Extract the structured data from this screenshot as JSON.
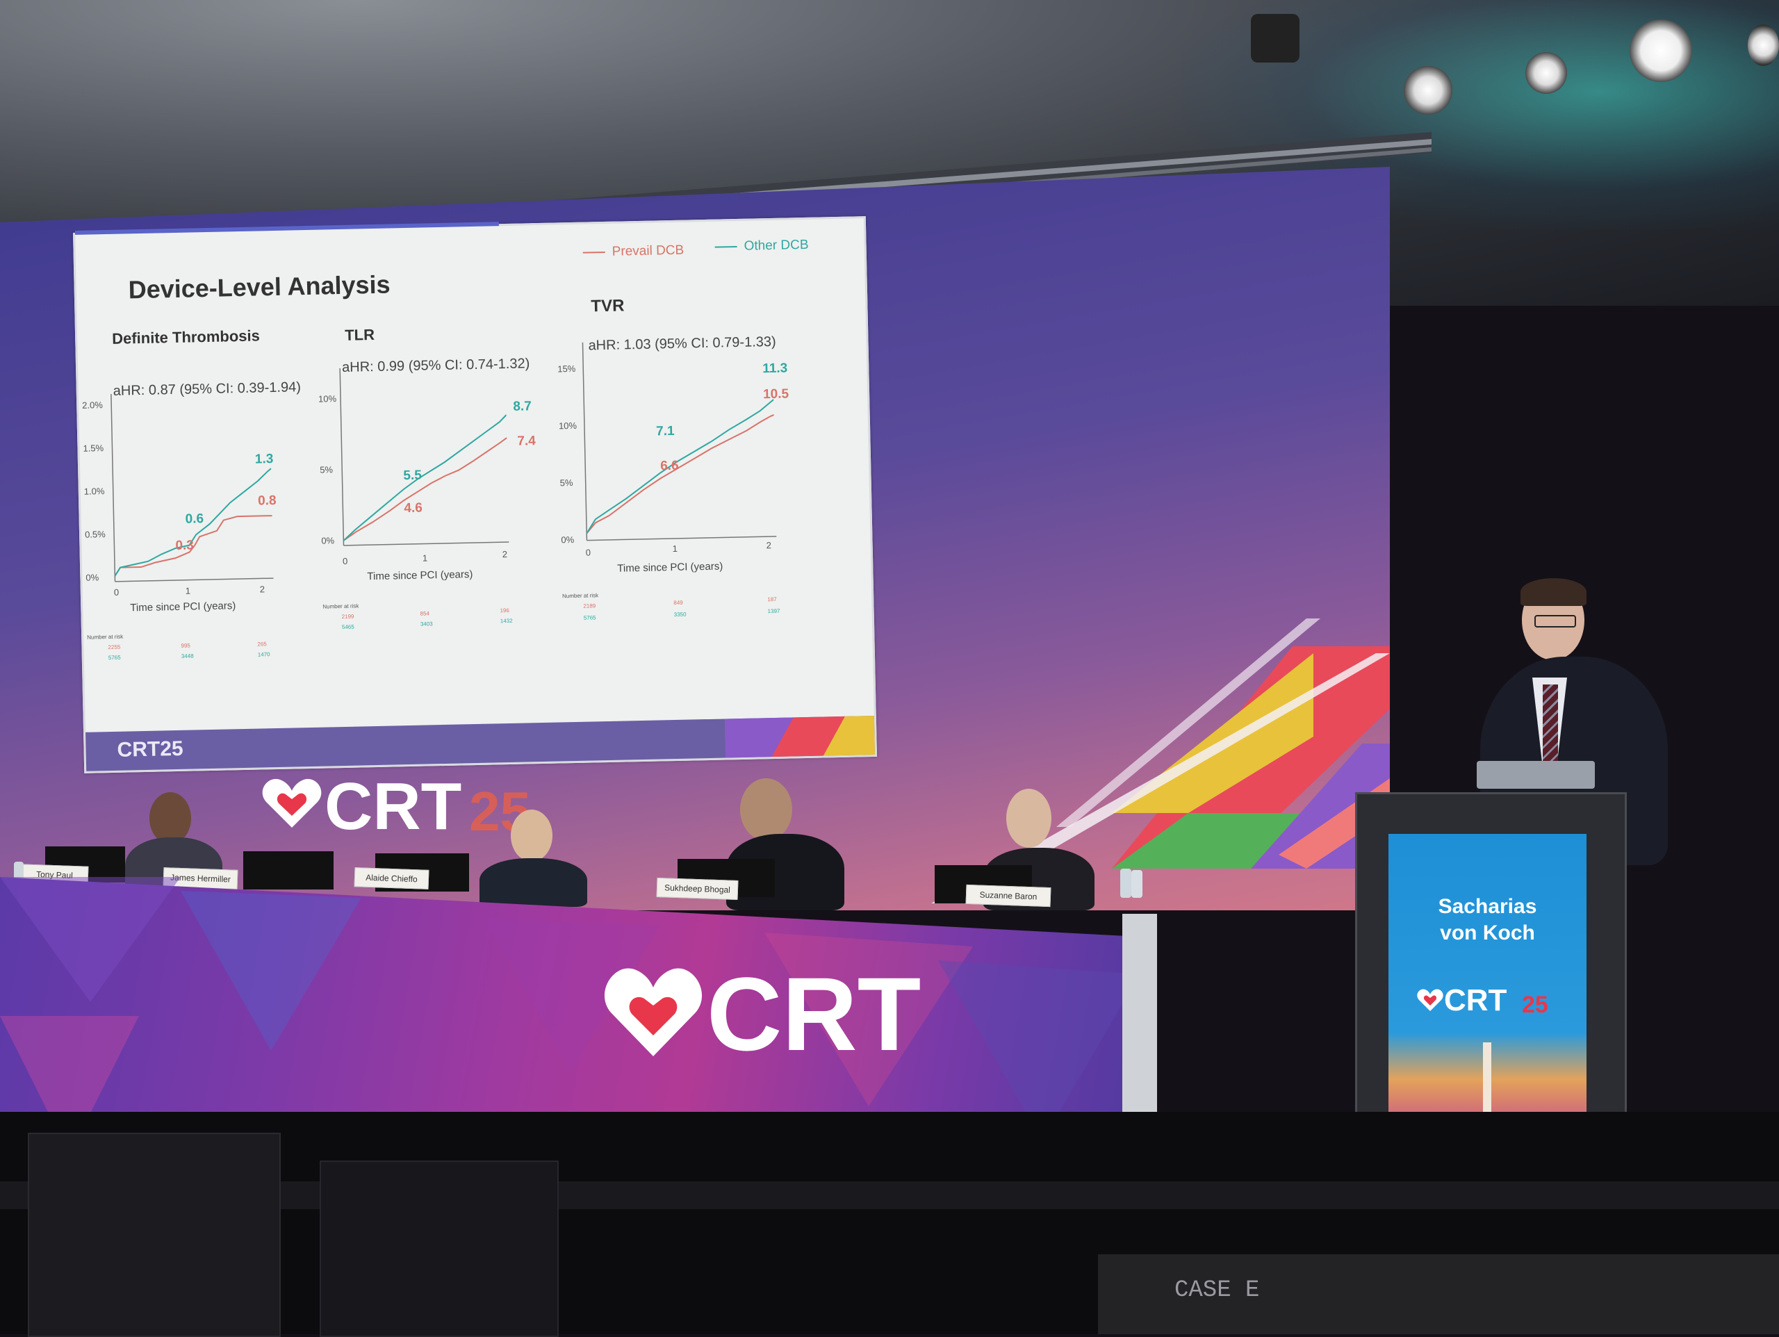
{
  "slide": {
    "title": "Device-Level Analysis",
    "legend": [
      {
        "label": "Prevail DCB",
        "color": "#d9736a"
      },
      {
        "label": "Other DCB",
        "color": "#2fa7a2"
      }
    ],
    "panels": [
      {
        "title": "Definite Thrombosis",
        "ahr": "aHR: 0.87 (95% CI: 0.39-1.94)",
        "y_ticks": [
          "2.0%",
          "1.5%",
          "1.0%",
          "0.5%",
          "0%"
        ],
        "x_ticks": [
          "0",
          "1",
          "2"
        ],
        "x_label": "Time since PCI (years)",
        "labels": {
          "red_mid": "0.3",
          "teal_mid": "0.6",
          "red_end": "0.8",
          "teal_end": "1.3"
        },
        "risk_header": "Number at risk",
        "risk_red": [
          "2255",
          "995",
          "265"
        ],
        "risk_teal": [
          "5765",
          "3448",
          "1470"
        ]
      },
      {
        "title": "TLR",
        "ahr": "aHR: 0.99 (95% CI: 0.74-1.32)",
        "y_ticks": [
          "10%",
          "5%",
          "0%"
        ],
        "x_ticks": [
          "0",
          "1",
          "2"
        ],
        "x_label": "Time since PCI (years)",
        "labels": {
          "red_mid": "4.6",
          "teal_mid": "5.5",
          "red_end": "7.4",
          "teal_end": "8.7"
        },
        "risk_header": "Number at risk",
        "risk_red": [
          "2199",
          "854",
          "196"
        ],
        "risk_teal": [
          "5465",
          "3403",
          "1432"
        ]
      },
      {
        "title": "TVR",
        "ahr": "aHR: 1.03 (95% CI: 0.79-1.33)",
        "y_ticks": [
          "15%",
          "10%",
          "5%",
          "0%"
        ],
        "x_ticks": [
          "0",
          "1",
          "2"
        ],
        "x_label": "Time since PCI (years)",
        "labels": {
          "red_mid": "6.6",
          "teal_mid": "7.1",
          "red_end": "10.5",
          "teal_end": "11.3"
        },
        "risk_header": "Number at risk",
        "risk_red": [
          "2189",
          "849",
          "187"
        ],
        "risk_teal": [
          "5765",
          "3350",
          "1397"
        ]
      }
    ],
    "footer_logo": "CRT25"
  },
  "screen_logo": {
    "main": "CRT",
    "suffix": "25"
  },
  "table_logo": "CRT",
  "nameplates": [
    "Tony Paul",
    "James Hermiller",
    "Alaide Chieffo",
    "Sukhdeep Bhogal",
    "Suzanne Baron"
  ],
  "podium": {
    "speaker_line1": "Sacharias",
    "speaker_line2": "von Koch",
    "logo": "CRT",
    "logo_suffix": "25"
  },
  "floor_label": "CASE E",
  "colors": {
    "red": "#d9736a",
    "teal": "#2fa7a2",
    "crt_red": "#e8374a"
  }
}
